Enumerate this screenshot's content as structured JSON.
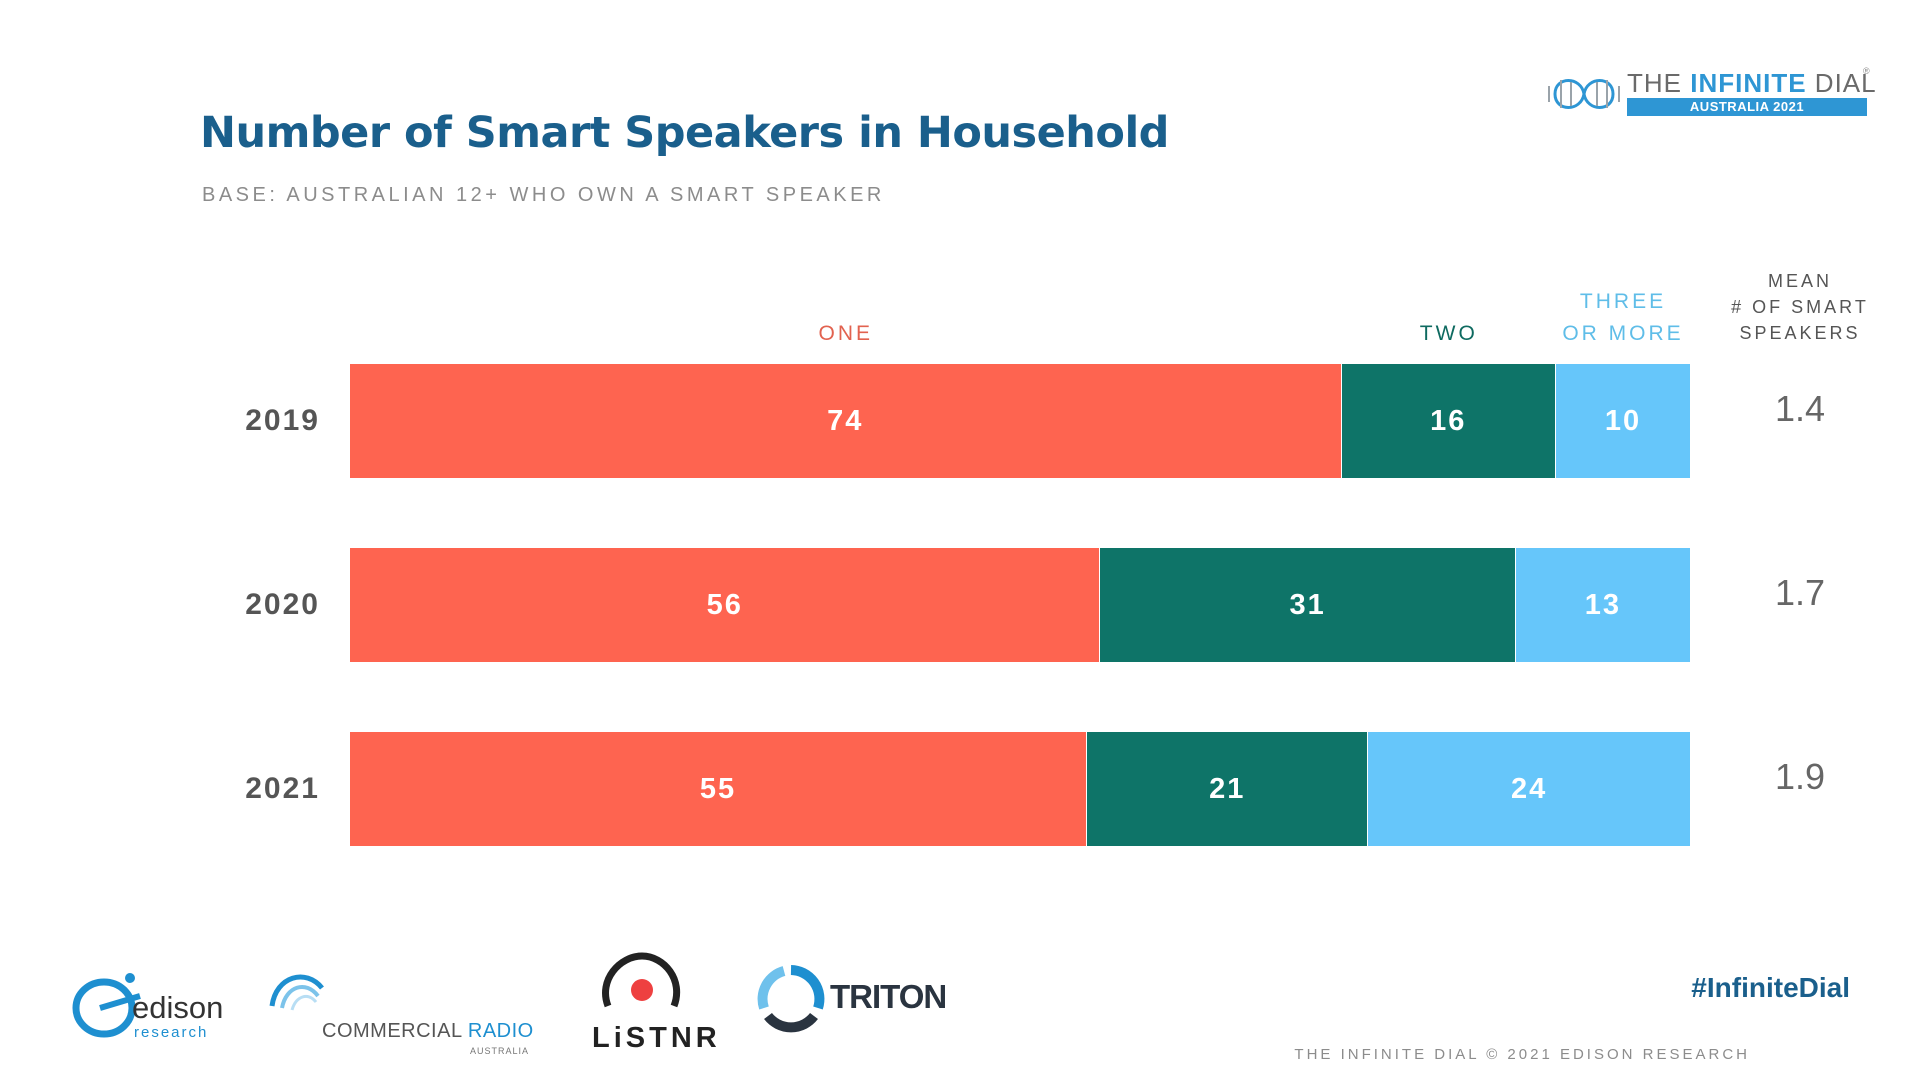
{
  "title": "Number of Smart Speakers in Household",
  "subtitle": "BASE: AUSTRALIAN 12+ WHO OWN A SMART SPEAKER",
  "brand": {
    "name_prefix": "THE ",
    "name_bold": "INFINITE",
    "name_suffix": " DIAL",
    "registered": "®",
    "edition": "AUSTRALIA 2021"
  },
  "mean_header": [
    "MEAN",
    "# OF SMART",
    "SPEAKERS"
  ],
  "colors": {
    "one": "#fe6450",
    "two": "#0e7468",
    "three": "#66c6fa"
  },
  "chart_data": {
    "type": "bar",
    "orientation": "horizontal",
    "stacked": true,
    "title": "Number of Smart Speakers in Household",
    "subtitle": "BASE: AUSTRALIAN 12+ WHO OWN A SMART SPEAKER",
    "categories": [
      "2019",
      "2020",
      "2021"
    ],
    "series": [
      {
        "name": "ONE",
        "label_lines": [
          "ONE"
        ],
        "color": "#fe6450",
        "values": [
          74,
          56,
          55
        ]
      },
      {
        "name": "TWO",
        "label_lines": [
          "TWO"
        ],
        "color": "#0e7468",
        "values": [
          16,
          31,
          21
        ]
      },
      {
        "name": "THREE OR MORE",
        "label_lines": [
          "THREE",
          "OR MORE"
        ],
        "color": "#66c6fa",
        "values": [
          10,
          13,
          24
        ]
      }
    ],
    "mean": [
      "1.4",
      "1.7",
      "1.9"
    ],
    "xlim": [
      0,
      100
    ],
    "xlabel": "",
    "ylabel": "",
    "grid": false
  },
  "footer": {
    "hashtag": "#InfiniteDial",
    "credit": "THE INFINITE DIAL  © 2021 EDISON RESEARCH"
  },
  "logos": {
    "edison_word": "edison",
    "edison_sub": "research",
    "cr_word_a": "COMMERCIAL ",
    "cr_word_b": "RADIO",
    "cr_sub": "AUSTRALIA",
    "listnr": "LiSTNR",
    "triton": "TRITON"
  }
}
